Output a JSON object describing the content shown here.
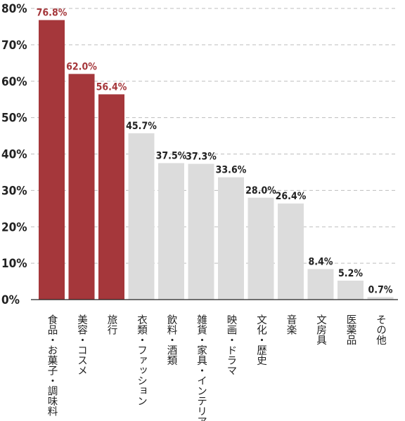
{
  "chart_data": {
    "type": "bar",
    "categories": [
      "食品・お菓子・調味料",
      "美容・コスメ",
      "旅行",
      "衣類・ファッション",
      "飲料・酒類",
      "雑貨・家具・インテリア",
      "映画・ドラマ",
      "文化・歴史",
      "音楽",
      "文房具",
      "医薬品",
      "その他"
    ],
    "values": [
      76.8,
      62.0,
      56.4,
      45.7,
      37.5,
      37.3,
      33.6,
      28.0,
      26.4,
      8.4,
      5.2,
      0.7
    ],
    "value_labels": [
      "76.8%",
      "62.0%",
      "56.4%",
      "45.7%",
      "37.5%",
      "37.3%",
      "33.6%",
      "28.0%",
      "26.4%",
      "8.4%",
      "5.2%",
      "0.7%"
    ],
    "highlight_count": 3,
    "ylim": [
      0,
      80
    ],
    "yticks": [
      0,
      10,
      20,
      30,
      40,
      50,
      60,
      70,
      80
    ],
    "ytick_labels": [
      "0%",
      "10%",
      "20%",
      "30%",
      "40%",
      "50%",
      "60%",
      "70%",
      "80%"
    ],
    "grid": true,
    "colors": {
      "highlight": "#a5373b",
      "normal": "#dcdcdc",
      "highlight_label": "#a5373b",
      "normal_label": "#222222"
    }
  }
}
